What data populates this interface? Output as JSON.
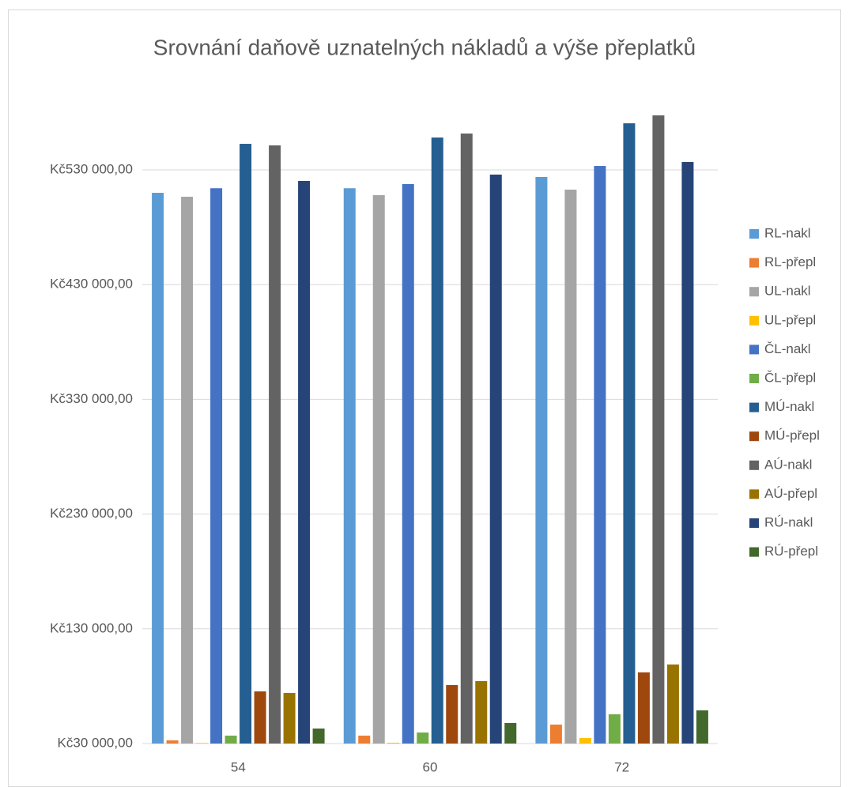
{
  "chart_data": {
    "type": "bar",
    "title": "Srovnání daňově uznatelných nákladů a výše přeplatků",
    "categories": [
      "54",
      "60",
      "72"
    ],
    "series": [
      {
        "name": "RL-nakl",
        "color": "#5b9bd5",
        "values": [
          510000,
          514000,
          523800
        ]
      },
      {
        "name": "RL-přepl",
        "color": "#ed7d31",
        "values": [
          32750,
          36900,
          46500
        ]
      },
      {
        "name": "UL-nakl",
        "color": "#a5a5a5",
        "values": [
          506600,
          508000,
          512800
        ]
      },
      {
        "name": "UL-přepl",
        "color": "#ffc000",
        "values": [
          30500,
          30700,
          34800
        ]
      },
      {
        "name": "ČL-nakl",
        "color": "#4472c4",
        "values": [
          514000,
          517600,
          533400
        ]
      },
      {
        "name": "ČL-přepl",
        "color": "#70ad47",
        "values": [
          36900,
          39600,
          55500
        ]
      },
      {
        "name": "MÚ-nakl",
        "color": "#255e91",
        "values": [
          552700,
          558200,
          570600
        ]
      },
      {
        "name": "MÚ-přepl",
        "color": "#9e480e",
        "values": [
          75450,
          81000,
          92000
        ]
      },
      {
        "name": "AÚ-nakl",
        "color": "#636363",
        "values": [
          551350,
          561700,
          577500
        ]
      },
      {
        "name": "AÚ-přepl",
        "color": "#997300",
        "values": [
          74080,
          84400,
          98900
        ]
      },
      {
        "name": "RÚ-nakl",
        "color": "#264478",
        "values": [
          520360,
          525900,
          536900
        ]
      },
      {
        "name": "RÚ-přepl",
        "color": "#43682b",
        "values": [
          43090,
          47900,
          58900
        ]
      }
    ],
    "ylim": [
      30000,
      580000
    ],
    "yticks": [
      {
        "value": 30000,
        "label": "Kč30 000,00"
      },
      {
        "value": 130000,
        "label": "Kč130 000,00"
      },
      {
        "value": 230000,
        "label": "Kč230 000,00"
      },
      {
        "value": 330000,
        "label": "Kč330 000,00"
      },
      {
        "value": 430000,
        "label": "Kč430 000,00"
      },
      {
        "value": 530000,
        "label": "Kč530 000,00"
      }
    ],
    "grid": true,
    "legend": "right"
  }
}
